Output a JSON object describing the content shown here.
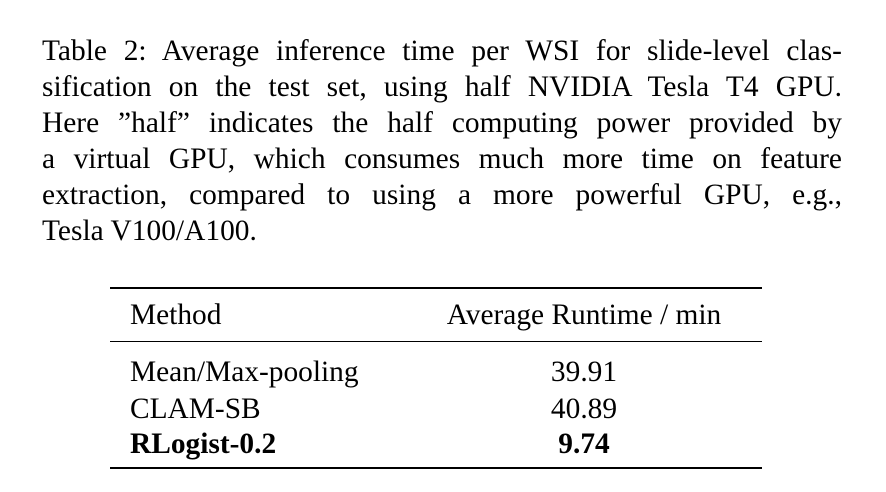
{
  "caption": {
    "lines": [
      "Table 2: Average inference time per WSI for slide-level clas-",
      "sification on the test set, using half NVIDIA Tesla T4 GPU.",
      "Here ”half” indicates the half computing power provided by",
      "a virtual GPU, which consumes much more time on feature",
      "extraction, compared to using a more powerful GPU, e.g.,",
      "Tesla V100/A100."
    ]
  },
  "table": {
    "headers": {
      "method": "Method",
      "runtime": "Average Runtime / min"
    },
    "rows": [
      {
        "method": "Mean/Max-pooling",
        "runtime": "39.91",
        "bold": false
      },
      {
        "method": "CLAM-SB",
        "runtime": "40.89",
        "bold": false
      },
      {
        "method": "RLogist-0.2",
        "runtime": "9.74",
        "bold": true
      }
    ]
  }
}
